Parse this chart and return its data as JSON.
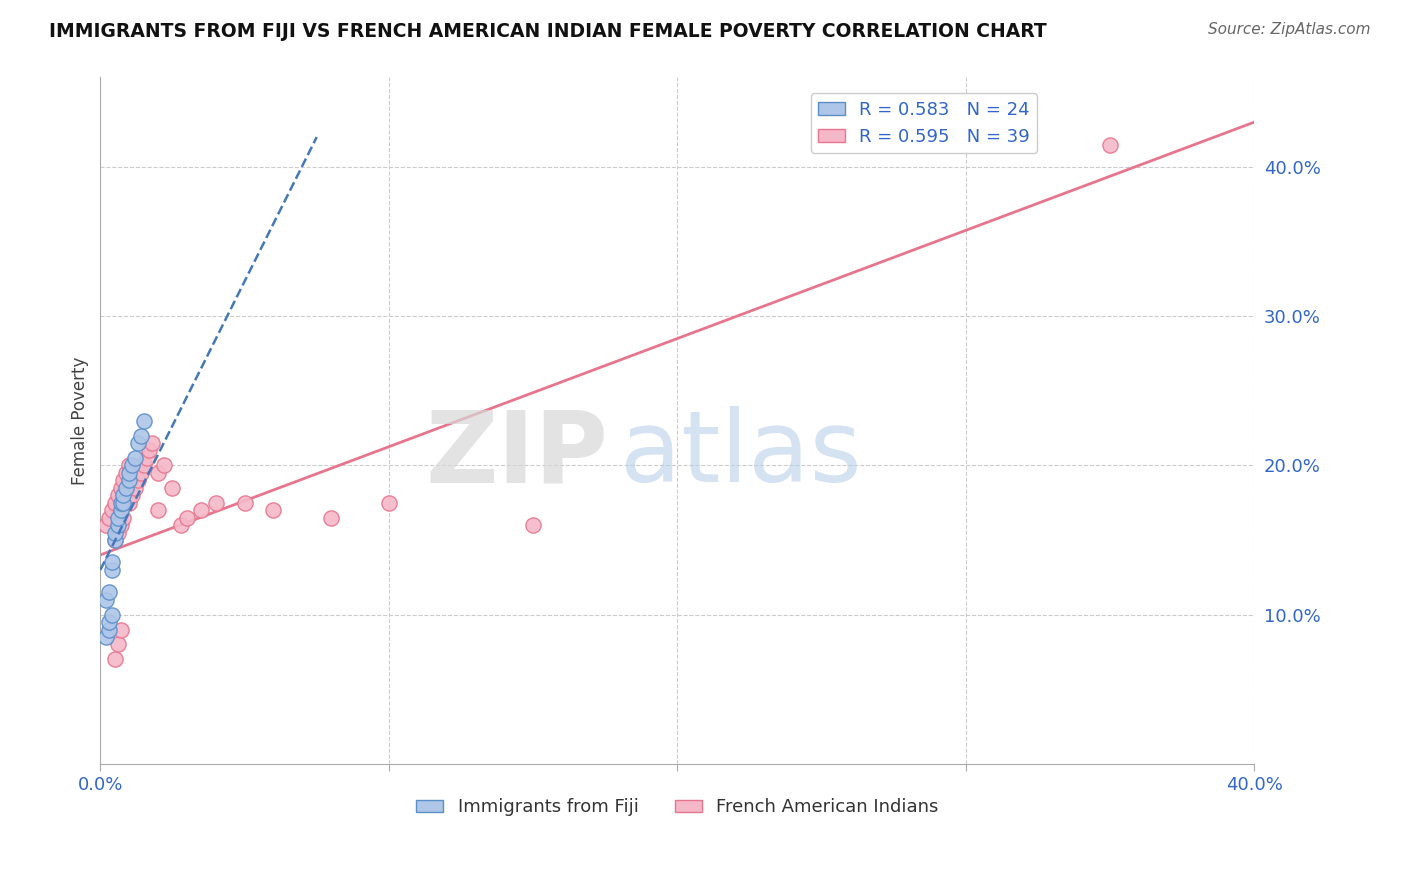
{
  "title": "IMMIGRANTS FROM FIJI VS FRENCH AMERICAN INDIAN FEMALE POVERTY CORRELATION CHART",
  "source": "Source: ZipAtlas.com",
  "ylabel": "Female Poverty",
  "xlim": [
    0.0,
    0.4
  ],
  "ylim": [
    0.0,
    0.46
  ],
  "x_tick_positions": [
    0.0,
    0.1,
    0.2,
    0.3,
    0.4
  ],
  "x_tick_labels": [
    "0.0%",
    "",
    "",
    "",
    "40.0%"
  ],
  "y_ticks_right": [
    0.1,
    0.2,
    0.3,
    0.4
  ],
  "y_tick_labels_right": [
    "10.0%",
    "20.0%",
    "30.0%",
    "40.0%"
  ],
  "grid_color": "#cccccc",
  "background_color": "#ffffff",
  "watermark_zip": "ZIP",
  "watermark_atlas": "atlas",
  "legend_R1": "R = 0.583",
  "legend_N1": "N = 24",
  "legend_R2": "R = 0.595",
  "legend_N2": "N = 39",
  "fiji_color": "#aec6e8",
  "fiji_edge_color": "#5b8fc9",
  "french_color": "#f4b8c8",
  "french_edge_color": "#e8758e",
  "fiji_line_color": "#4477bb",
  "french_line_color": "#e8758e",
  "fiji_x": [
    0.002,
    0.003,
    0.004,
    0.004,
    0.005,
    0.005,
    0.006,
    0.006,
    0.007,
    0.007,
    0.008,
    0.008,
    0.009,
    0.01,
    0.01,
    0.011,
    0.012,
    0.013,
    0.014,
    0.015,
    0.002,
    0.003,
    0.003,
    0.004
  ],
  "fiji_y": [
    0.11,
    0.115,
    0.13,
    0.135,
    0.15,
    0.155,
    0.16,
    0.165,
    0.17,
    0.175,
    0.175,
    0.18,
    0.185,
    0.19,
    0.195,
    0.2,
    0.205,
    0.215,
    0.22,
    0.23,
    0.085,
    0.09,
    0.095,
    0.1
  ],
  "french_x": [
    0.002,
    0.003,
    0.004,
    0.005,
    0.005,
    0.006,
    0.006,
    0.007,
    0.007,
    0.008,
    0.008,
    0.009,
    0.01,
    0.01,
    0.011,
    0.012,
    0.013,
    0.014,
    0.015,
    0.016,
    0.017,
    0.018,
    0.02,
    0.022,
    0.025,
    0.028,
    0.03,
    0.035,
    0.04,
    0.05,
    0.06,
    0.08,
    0.1,
    0.15,
    0.005,
    0.006,
    0.007,
    0.02,
    0.35
  ],
  "french_y": [
    0.16,
    0.165,
    0.17,
    0.15,
    0.175,
    0.155,
    0.18,
    0.16,
    0.185,
    0.165,
    0.19,
    0.195,
    0.175,
    0.2,
    0.18,
    0.185,
    0.19,
    0.195,
    0.2,
    0.205,
    0.21,
    0.215,
    0.195,
    0.2,
    0.185,
    0.16,
    0.165,
    0.17,
    0.175,
    0.175,
    0.17,
    0.165,
    0.175,
    0.16,
    0.07,
    0.08,
    0.09,
    0.17,
    0.415
  ],
  "fiji_trend_x0": 0.0,
  "fiji_trend_y0": 0.13,
  "fiji_trend_x1": 0.075,
  "fiji_trend_y1": 0.42,
  "french_trend_x0": 0.0,
  "french_trend_y0": 0.14,
  "french_trend_x1": 0.4,
  "french_trend_y1": 0.43,
  "marker_size": 120
}
